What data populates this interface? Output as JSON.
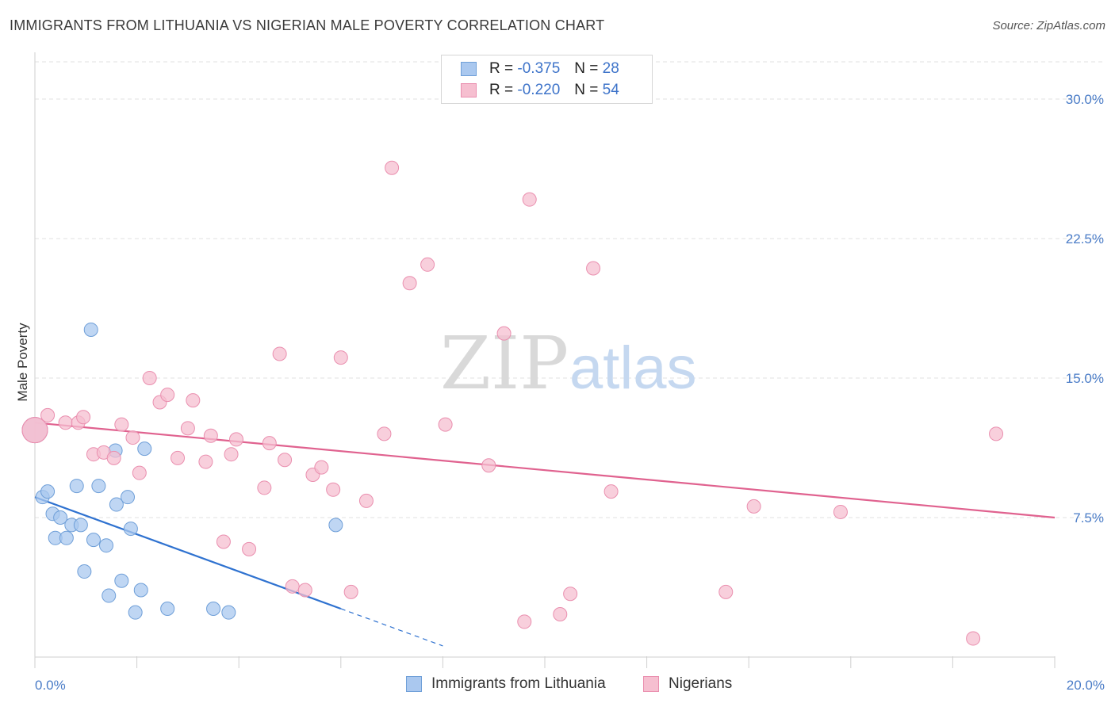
{
  "title": "IMMIGRANTS FROM LITHUANIA VS NIGERIAN MALE POVERTY CORRELATION CHART",
  "source": "Source: ZipAtlas.com",
  "watermark": {
    "zip": "ZIP",
    "atlas": "atlas"
  },
  "legend": {
    "rows": [
      {
        "r_label": "R =",
        "r_value": "-0.375",
        "n_label": "N =",
        "n_value": "28"
      },
      {
        "r_label": "R =",
        "r_value": "-0.220",
        "n_label": "N =",
        "n_value": "54"
      }
    ]
  },
  "bottom_legend": [
    "Immigrants from Lithuania",
    "Nigerians"
  ],
  "colors": {
    "blue_fill": "#aac8ef",
    "blue_stroke": "#6f9fd8",
    "blue_line": "#2f72d0",
    "pink_fill": "#f6bfd0",
    "pink_stroke": "#ea8faf",
    "pink_line": "#e0628f",
    "grid": "#e2e2e2",
    "tick_text": "#4a7cc7"
  },
  "chart_data": {
    "type": "scatter",
    "title": "IMMIGRANTS FROM LITHUANIA VS NIGERIAN MALE POVERTY CORRELATION CHART",
    "xlabel": "",
    "ylabel": "Male Poverty",
    "xlim": [
      0,
      20
    ],
    "ylim": [
      0,
      32
    ],
    "x_tick_labels": [
      "0.0%",
      "20.0%"
    ],
    "y_ticks": [
      7.5,
      15.0,
      22.5,
      30.0
    ],
    "y_tick_labels": [
      "7.5%",
      "15.0%",
      "22.5%",
      "30.0%"
    ],
    "series": [
      {
        "name": "Immigrants from Lithuania",
        "r": -0.375,
        "n": 28,
        "points": [
          [
            0.0,
            12.2
          ],
          [
            0.15,
            8.6
          ],
          [
            0.25,
            8.9
          ],
          [
            0.35,
            7.7
          ],
          [
            0.4,
            6.4
          ],
          [
            0.5,
            7.5
          ],
          [
            0.62,
            6.4
          ],
          [
            0.72,
            7.1
          ],
          [
            0.82,
            9.2
          ],
          [
            0.9,
            7.1
          ],
          [
            0.97,
            4.6
          ],
          [
            1.1,
            17.6
          ],
          [
            1.15,
            6.3
          ],
          [
            1.25,
            9.2
          ],
          [
            1.4,
            6.0
          ],
          [
            1.45,
            3.3
          ],
          [
            1.58,
            11.1
          ],
          [
            1.6,
            8.2
          ],
          [
            1.7,
            4.1
          ],
          [
            1.82,
            8.6
          ],
          [
            1.88,
            6.9
          ],
          [
            1.97,
            2.4
          ],
          [
            2.08,
            3.6
          ],
          [
            2.15,
            11.2
          ],
          [
            2.6,
            2.6
          ],
          [
            3.5,
            2.6
          ],
          [
            3.8,
            2.4
          ],
          [
            5.9,
            7.1
          ]
        ],
        "trend": {
          "x0": 0.0,
          "y0": 8.6,
          "x1": 6.0,
          "y1": 2.6,
          "dash_to_x": 8.0
        }
      },
      {
        "name": "Nigerians",
        "r": -0.22,
        "n": 54,
        "points": [
          [
            0.0,
            12.2
          ],
          [
            0.25,
            13.0
          ],
          [
            0.6,
            12.6
          ],
          [
            0.85,
            12.6
          ],
          [
            0.95,
            12.9
          ],
          [
            1.15,
            10.9
          ],
          [
            1.35,
            11.0
          ],
          [
            1.55,
            10.7
          ],
          [
            1.7,
            12.5
          ],
          [
            1.92,
            11.8
          ],
          [
            2.05,
            9.9
          ],
          [
            2.25,
            15.0
          ],
          [
            2.45,
            13.7
          ],
          [
            2.6,
            14.1
          ],
          [
            2.8,
            10.7
          ],
          [
            3.0,
            12.3
          ],
          [
            3.1,
            13.8
          ],
          [
            3.35,
            10.5
          ],
          [
            3.45,
            11.9
          ],
          [
            3.7,
            6.2
          ],
          [
            3.85,
            10.9
          ],
          [
            3.95,
            11.7
          ],
          [
            4.2,
            5.8
          ],
          [
            4.5,
            9.1
          ],
          [
            4.6,
            11.5
          ],
          [
            4.8,
            16.3
          ],
          [
            4.9,
            10.6
          ],
          [
            5.05,
            3.8
          ],
          [
            5.3,
            3.6
          ],
          [
            5.45,
            9.8
          ],
          [
            5.62,
            10.2
          ],
          [
            5.85,
            9.0
          ],
          [
            6.0,
            16.1
          ],
          [
            6.2,
            3.5
          ],
          [
            6.5,
            8.4
          ],
          [
            6.85,
            12.0
          ],
          [
            7.0,
            26.3
          ],
          [
            7.35,
            20.1
          ],
          [
            7.7,
            21.1
          ],
          [
            8.05,
            12.5
          ],
          [
            8.9,
            10.3
          ],
          [
            9.2,
            17.4
          ],
          [
            9.6,
            1.9
          ],
          [
            9.7,
            24.6
          ],
          [
            10.3,
            2.3
          ],
          [
            10.5,
            3.4
          ],
          [
            10.95,
            20.9
          ],
          [
            11.3,
            8.9
          ],
          [
            13.55,
            3.5
          ],
          [
            14.1,
            8.1
          ],
          [
            15.8,
            7.8
          ],
          [
            18.4,
            1.0
          ],
          [
            18.85,
            12.0
          ],
          [
            0.0,
            12.2
          ]
        ],
        "trend": {
          "x0": 0.0,
          "y0": 12.6,
          "x1": 20.0,
          "y1": 7.5
        }
      }
    ]
  }
}
